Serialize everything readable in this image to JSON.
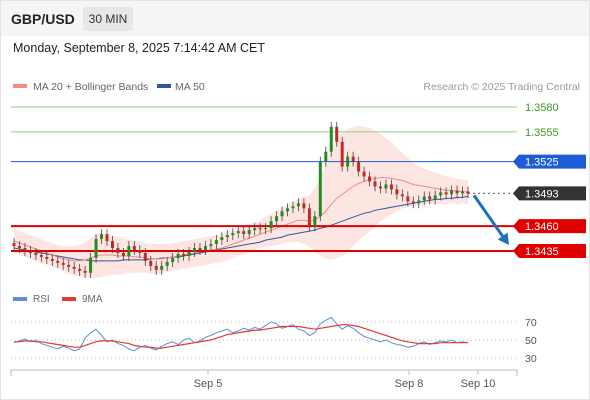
{
  "header": {
    "pair": "GBP/USD",
    "timeframe": "30 MIN"
  },
  "datetime": "Monday, September 8, 2025 7:14:42 AM CET",
  "legend": {
    "ma20": "MA 20 + Bollinger Bands",
    "ma50": "MA 50"
  },
  "credit": "Research © 2025 Trading Central",
  "rsi_legend": {
    "rsi": "RSI",
    "ma": "9MA"
  },
  "colors": {
    "up": "#228b22",
    "down": "#c62828",
    "resistance": "#1e5bd6",
    "support": "#e00000",
    "target_line": "#8fd07a",
    "price_tag": "#333333",
    "arrow": "#1f6fbf"
  },
  "chart_data": [
    {
      "type": "line",
      "x_axis_labels": [
        "Sep 5",
        "Sep 8",
        "Sep 10"
      ],
      "y_range": [
        1.3405,
        1.359
      ],
      "levels": [
        {
          "value": 1.358,
          "label": "1.3580",
          "kind": "target"
        },
        {
          "value": 1.3555,
          "label": "1.3555",
          "kind": "target"
        },
        {
          "value": 1.3525,
          "label": "1.3525",
          "kind": "resistance"
        },
        {
          "value": 1.3493,
          "label": "1.3493",
          "kind": "last"
        },
        {
          "value": 1.346,
          "label": "1.3460",
          "kind": "support"
        },
        {
          "value": 1.3435,
          "label": "1.3435",
          "kind": "support"
        }
      ],
      "projection": {
        "from": 1.3493,
        "to": 1.3435
      },
      "close": [
        1.344,
        1.3438,
        1.3435,
        1.3433,
        1.3431,
        1.3429,
        1.3427,
        1.3425,
        1.3423,
        1.3421,
        1.3419,
        1.3417,
        1.3415,
        1.3413,
        1.3428,
        1.3447,
        1.3452,
        1.3445,
        1.3438,
        1.3433,
        1.343,
        1.344,
        1.3436,
        1.3433,
        1.3425,
        1.342,
        1.3416,
        1.342,
        1.3424,
        1.3428,
        1.3432,
        1.343,
        1.3434,
        1.3438,
        1.3436,
        1.344,
        1.3442,
        1.3446,
        1.3449,
        1.3451,
        1.3453,
        1.3455,
        1.3452,
        1.3456,
        1.3458,
        1.3457,
        1.3458,
        1.3465,
        1.347,
        1.3475,
        1.3478,
        1.348,
        1.3483,
        1.3478,
        1.346,
        1.347,
        1.3525,
        1.3535,
        1.356,
        1.3545,
        1.352,
        1.353,
        1.3525,
        1.3515,
        1.351,
        1.3505,
        1.35,
        1.3498,
        1.3502,
        1.3497,
        1.3492,
        1.349,
        1.3485,
        1.3483,
        1.3486,
        1.349,
        1.3487,
        1.3491,
        1.3494,
        1.3492,
        1.3496,
        1.3493,
        1.3495,
        1.3493
      ],
      "ma20": [
        1.3445,
        1.3443,
        1.3441,
        1.3439,
        1.3437,
        1.3435,
        1.3433,
        1.3431,
        1.3429,
        1.3427,
        1.3426,
        1.3425,
        1.3425,
        1.3426,
        1.3428,
        1.343,
        1.3431,
        1.3431,
        1.3431,
        1.343,
        1.343,
        1.343,
        1.3429,
        1.3429,
        1.3428,
        1.3427,
        1.3427,
        1.3427,
        1.3428,
        1.3429,
        1.343,
        1.3431,
        1.3432,
        1.3433,
        1.3434,
        1.3435,
        1.3436,
        1.3437,
        1.3438,
        1.344,
        1.3442,
        1.3444,
        1.3446,
        1.3448,
        1.345,
        1.3452,
        1.3454,
        1.3456,
        1.3458,
        1.346,
        1.3462,
        1.3464,
        1.3466,
        1.3466,
        1.3465,
        1.3466,
        1.347,
        1.3475,
        1.3482,
        1.3488,
        1.3492,
        1.3496,
        1.35,
        1.3503,
        1.3505,
        1.3507,
        1.3508,
        1.3509,
        1.3509,
        1.3508,
        1.3507,
        1.3506,
        1.3504,
        1.3502,
        1.3501,
        1.35,
        1.3499,
        1.3498,
        1.3497,
        1.3496,
        1.3496,
        1.3495,
        1.3495,
        1.3494
      ],
      "ma50": [
        1.3438,
        1.3437,
        1.3436,
        1.3435,
        1.3434,
        1.3433,
        1.3432,
        1.3431,
        1.343,
        1.3429,
        1.3428,
        1.3427,
        1.3426,
        1.3426,
        1.3425,
        1.3425,
        1.3425,
        1.3425,
        1.3425,
        1.3425,
        1.3426,
        1.3426,
        1.3426,
        1.3426,
        1.3426,
        1.3427,
        1.3427,
        1.3428,
        1.3428,
        1.3429,
        1.3429,
        1.343,
        1.3431,
        1.3432,
        1.3433,
        1.3434,
        1.3435,
        1.3436,
        1.3437,
        1.3438,
        1.3439,
        1.344,
        1.3441,
        1.3442,
        1.3443,
        1.3444,
        1.3446,
        1.3447,
        1.3448,
        1.3449,
        1.3451,
        1.3452,
        1.3453,
        1.3454,
        1.3455,
        1.3456,
        1.3458,
        1.3459,
        1.3461,
        1.3463,
        1.3465,
        1.3467,
        1.3469,
        1.3471,
        1.3473,
        1.3474,
        1.3476,
        1.3477,
        1.3478,
        1.3479,
        1.348,
        1.3481,
        1.3482,
        1.3483,
        1.3484,
        1.3485,
        1.3486,
        1.3487,
        1.3487,
        1.3488,
        1.3488,
        1.3489,
        1.3489,
        1.349
      ],
      "band_halfwidth": [
        0.0012,
        0.0012,
        0.0012,
        0.0012,
        0.0012,
        0.0012,
        0.0012,
        0.0012,
        0.0012,
        0.0013,
        0.0014,
        0.0015,
        0.0016,
        0.0018,
        0.002,
        0.0022,
        0.0022,
        0.0021,
        0.002,
        0.0019,
        0.0018,
        0.0017,
        0.0016,
        0.0016,
        0.0015,
        0.0015,
        0.0015,
        0.0015,
        0.0014,
        0.0014,
        0.0014,
        0.0014,
        0.0014,
        0.0014,
        0.0014,
        0.0014,
        0.0014,
        0.0014,
        0.0014,
        0.0014,
        0.0014,
        0.0014,
        0.0014,
        0.0014,
        0.0014,
        0.0014,
        0.0015,
        0.0016,
        0.0017,
        0.0018,
        0.0019,
        0.002,
        0.0022,
        0.0024,
        0.0026,
        0.0032,
        0.004,
        0.0048,
        0.0056,
        0.006,
        0.0062,
        0.0062,
        0.006,
        0.0058,
        0.0055,
        0.0052,
        0.0048,
        0.0044,
        0.004,
        0.0036,
        0.0032,
        0.0028,
        0.0025,
        0.0022,
        0.002,
        0.0018,
        0.0017,
        0.0016,
        0.0015,
        0.0014,
        0.0013,
        0.0013,
        0.0012,
        0.0012
      ]
    },
    {
      "type": "line",
      "title": "RSI",
      "y_ticks": [
        "70",
        "50",
        "30"
      ],
      "ylim": [
        20,
        80
      ],
      "rsi": [
        47,
        49,
        51,
        48,
        50,
        46,
        44,
        42,
        40,
        43,
        41,
        38,
        40,
        52,
        58,
        62,
        55,
        48,
        50,
        46,
        44,
        40,
        38,
        42,
        44,
        41,
        39,
        43,
        46,
        48,
        45,
        50,
        52,
        47,
        49,
        53,
        55,
        58,
        60,
        62,
        58,
        60,
        63,
        61,
        64,
        62,
        66,
        70,
        68,
        63,
        65,
        67,
        62,
        60,
        55,
        58,
        68,
        72,
        75,
        68,
        62,
        66,
        63,
        58,
        54,
        52,
        50,
        48,
        50,
        47,
        45,
        44,
        42,
        43,
        46,
        48,
        45,
        47,
        49,
        48,
        50,
        47,
        48,
        47
      ],
      "ma9": [
        48,
        48,
        49,
        49,
        48,
        48,
        47,
        46,
        45,
        44,
        43,
        42,
        42,
        44,
        46,
        48,
        49,
        49,
        49,
        48,
        47,
        46,
        44,
        43,
        42,
        42,
        41,
        41,
        42,
        43,
        44,
        45,
        46,
        47,
        48,
        49,
        50,
        52,
        54,
        56,
        57,
        58,
        59,
        60,
        61,
        61,
        62,
        63,
        64,
        65,
        65,
        65,
        65,
        64,
        63,
        62,
        63,
        64,
        65,
        66,
        67,
        67,
        66,
        65,
        63,
        61,
        59,
        57,
        55,
        53,
        51,
        49,
        48,
        47,
        46,
        46,
        46,
        46,
        47,
        47,
        47,
        47,
        47,
        47
      ]
    }
  ]
}
